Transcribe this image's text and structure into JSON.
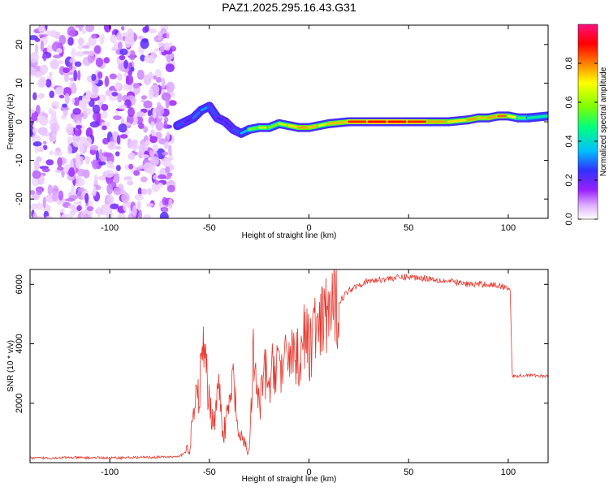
{
  "figure": {
    "title": "PAZ1.2025.295.16.43.G31"
  },
  "chart_data": [
    {
      "type": "heatmap",
      "xlabel": "Height of straight line (km)",
      "ylabel": "Frequency (Hz)",
      "xlim": [
        -140,
        120
      ],
      "ylim": [
        -25,
        25
      ],
      "xticks": [
        -100,
        -50,
        0,
        50,
        100
      ],
      "xtick_labels": [
        "-100",
        "-50",
        "0",
        "50",
        "100"
      ],
      "yticks": [
        -20,
        -10,
        0,
        10,
        20
      ],
      "ytick_labels": [
        "-20",
        "-10",
        "0",
        "10",
        "20"
      ],
      "noise_region_x": [
        -140,
        -68
      ],
      "ridge": {
        "x": [
          -66,
          -62,
          -58,
          -54,
          -50,
          -46,
          -42,
          -38,
          -34,
          -30,
          -25,
          -20,
          -15,
          -10,
          -5,
          0,
          5,
          10,
          20,
          30,
          40,
          50,
          60,
          70,
          80,
          85,
          90,
          95,
          100,
          105,
          110,
          120
        ],
        "freq": [
          -1,
          0,
          1,
          3,
          4,
          1,
          0,
          -2,
          -3,
          -2,
          -1.5,
          -1.5,
          -0.5,
          -1,
          -1.5,
          -1.5,
          -1,
          -0.5,
          0,
          0,
          0,
          0,
          0,
          0,
          0.5,
          1,
          1,
          1.5,
          1.5,
          1,
          1,
          1.5
        ],
        "amplitude": [
          0.35,
          0.3,
          0.3,
          0.4,
          0.35,
          0.3,
          0.3,
          0.3,
          0.35,
          0.45,
          0.7,
          0.6,
          0.6,
          0.7,
          0.75,
          0.8,
          0.7,
          0.65,
          0.85,
          0.9,
          0.9,
          0.9,
          0.85,
          0.7,
          0.75,
          0.8,
          0.7,
          0.85,
          0.8,
          0.6,
          0.5,
          0.45
        ]
      },
      "colorbar": {
        "label": "Normalized spectral amplitude",
        "ticks": [
          0.0,
          0.2,
          0.4,
          0.6,
          0.8
        ],
        "tick_labels": [
          "0.0",
          "0.2",
          "0.4",
          "0.6",
          "0.8"
        ],
        "colors": [
          "#ffffff",
          "#e0b0ff",
          "#9a20ff",
          "#3030ff",
          "#00c0ff",
          "#00ff80",
          "#80ff00",
          "#ffff00",
          "#ff8000",
          "#ff0000",
          "#ff1080"
        ]
      }
    },
    {
      "type": "line",
      "xlabel": "Height of straight line (km)",
      "ylabel": "SNR (10 * v/v)",
      "xlim": [
        -140,
        120
      ],
      "ylim": [
        0,
        6500
      ],
      "xticks": [
        -100,
        -50,
        0,
        50,
        100
      ],
      "xtick_labels": [
        "-100",
        "-50",
        "0",
        "50",
        "100"
      ],
      "yticks": [
        2000,
        4000,
        6000
      ],
      "ytick_labels": [
        "2000",
        "4000",
        "6000"
      ],
      "color": "#e8362c",
      "x": [
        -140,
        -120,
        -100,
        -80,
        -65,
        -60,
        -58,
        -55,
        -53,
        -50,
        -48,
        -45,
        -43,
        -40,
        -38,
        -35,
        -33,
        -30,
        -28,
        -25,
        -22,
        -20,
        -18,
        -15,
        -13,
        -10,
        -8,
        -5,
        -3,
        0,
        3,
        5,
        8,
        10,
        12,
        15,
        20,
        25,
        30,
        40,
        50,
        60,
        70,
        80,
        90,
        100,
        101,
        102,
        110,
        120
      ],
      "y": [
        150,
        170,
        160,
        180,
        200,
        500,
        1600,
        2500,
        3800,
        2000,
        1400,
        2600,
        900,
        1900,
        2800,
        700,
        800,
        300,
        3500,
        1800,
        3100,
        2400,
        3200,
        3600,
        2800,
        4000,
        3700,
        3500,
        4300,
        3800,
        4600,
        4200,
        4900,
        5200,
        5000,
        5400,
        5800,
        6000,
        6100,
        6200,
        6250,
        6200,
        6100,
        6000,
        6000,
        5900,
        5800,
        2900,
        2950,
        2900
      ]
    }
  ]
}
